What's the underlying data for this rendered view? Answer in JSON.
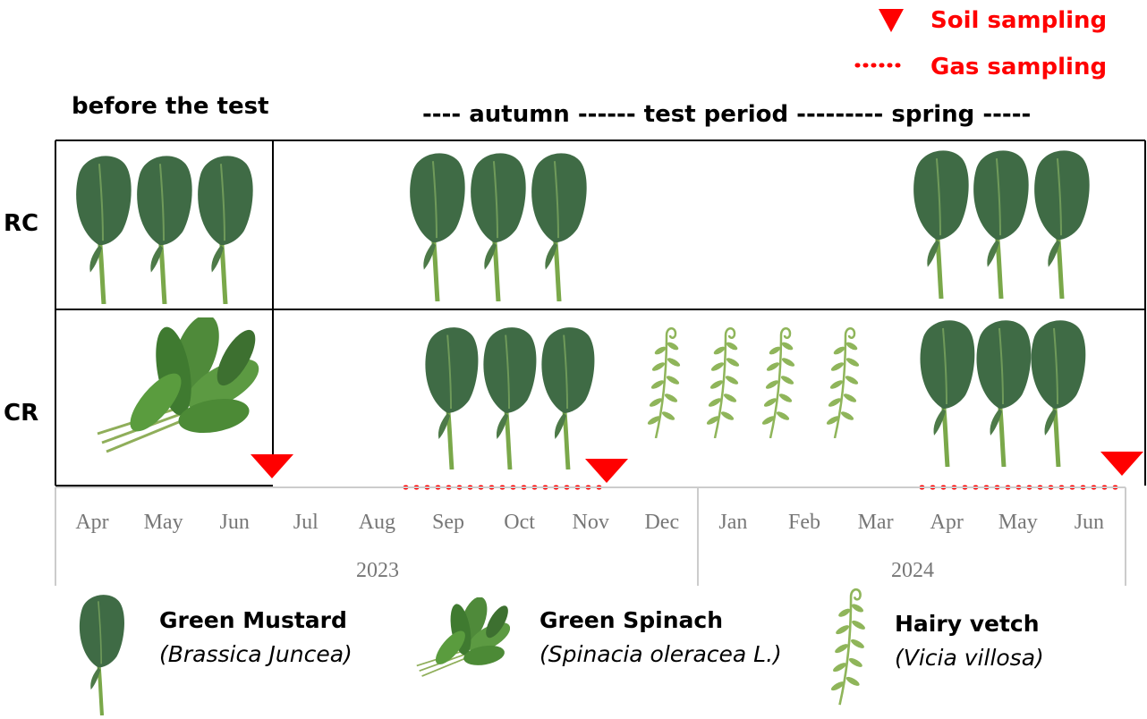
{
  "top_legend": {
    "soil": "Soil sampling",
    "gas": "Gas sampling"
  },
  "header": {
    "before": "before the test",
    "period": "---- autumn ------ test period --------- spring -----"
  },
  "rows": [
    "RC",
    "CR"
  ],
  "months": [
    "Apr",
    "May",
    "Jun",
    "Jul",
    "Aug",
    "Sep",
    "Oct",
    "Nov",
    "Dec",
    "Jan",
    "Feb",
    "Mar",
    "Apr",
    "May",
    "Jun"
  ],
  "years": [
    "2023",
    "2024"
  ],
  "legend": [
    {
      "name": "Green Mustard",
      "latin": "(Brassica Juncea)"
    },
    {
      "name": "Green Spinach",
      "latin": "(Spinacia oleracea L.)"
    },
    {
      "name": "Hairy vetch",
      "latin": "(Vicia villosa)"
    }
  ]
}
